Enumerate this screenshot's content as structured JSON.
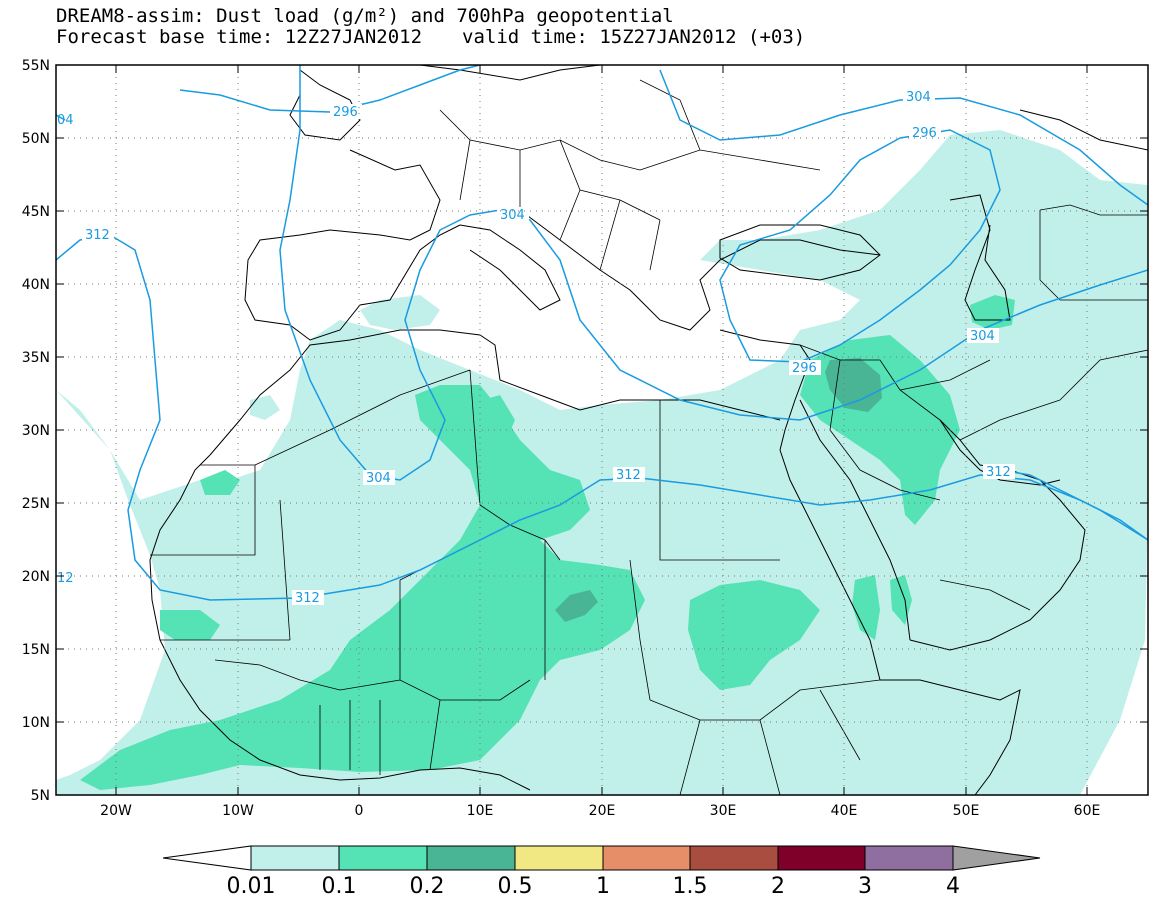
{
  "header": {
    "title": "DREAM8-assim: Dust load (g/m²) and 700hPa geopotential",
    "base_time": "Forecast base time: 12Z27JAN2012",
    "valid_time": "valid time: 15Z27JAN2012 (+03)"
  },
  "axes": {
    "lat_ticks": [
      "55N",
      "50N",
      "45N",
      "40N",
      "35N",
      "30N",
      "25N",
      "20N",
      "15N",
      "10N",
      "5N"
    ],
    "lon_ticks": [
      "20W",
      "10W",
      "0",
      "10E",
      "20E",
      "30E",
      "40E",
      "50E",
      "60E"
    ]
  },
  "contours": {
    "labels": [
      "296",
      "304",
      "296",
      "304",
      "312",
      "304",
      "304",
      "296",
      "312",
      "312",
      "312",
      "04",
      "12"
    ]
  },
  "colorbar": {
    "labels": [
      "0.01",
      "0.1",
      "0.2",
      "0.5",
      "1",
      "1.5",
      "2",
      "3",
      "4"
    ],
    "colors": [
      "#ffffff",
      "#c1f0ea",
      "#55e2b5",
      "#4ab594",
      "#f2e883",
      "#e58e68",
      "#a94d40",
      "#7f0029",
      "#8e6fa0",
      "#a0a0a0"
    ]
  },
  "colors": {
    "dust_low": "#c1f0ea",
    "dust_mid": "#55e2b5",
    "dust_high": "#4ab594",
    "contour": "#1a9be0"
  }
}
